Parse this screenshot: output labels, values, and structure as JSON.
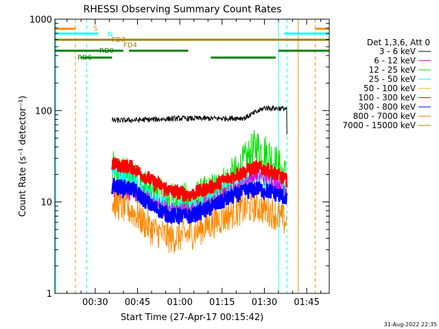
{
  "chart_data": {
    "type": "line",
    "title": "RHESSI Observing Summary Count Rates",
    "xlabel": "Start Time (27-Apr-17 00:15:42)",
    "ylabel": "Count Rate (s⁻¹ detector⁻¹)",
    "y_scale": "log",
    "ylim": [
      1,
      1000
    ],
    "xlim": [
      "00:15:42",
      "01:53:00"
    ],
    "x_ticks": [
      "00:30",
      "00:45",
      "01:00",
      "01:15",
      "01:30",
      "01:45"
    ],
    "y_ticks": [
      "1",
      "10",
      "100",
      "1000"
    ],
    "legend_header": "Det 1,3,6, Att 0",
    "legend_position": "right",
    "timestamp": "31-Aug-2022 22:35",
    "series": [
      {
        "name": "3 - 6 keV",
        "color": "#000000",
        "x": [
          "00:36",
          "00:46",
          "01:00",
          "01:14",
          "01:23",
          "01:30",
          "01:38"
        ],
        "y": [
          78,
          79,
          82,
          82,
          83,
          107,
          105
        ]
      },
      {
        "name": "6 - 12 keV",
        "color": "#e000e0",
        "x": [
          "00:36",
          "00:43",
          "00:50",
          "00:57",
          "01:04",
          "01:12",
          "01:20",
          "01:27",
          "01:32",
          "01:38"
        ],
        "y": [
          14,
          13,
          10,
          8,
          8,
          10,
          14,
          20,
          18,
          14
        ]
      },
      {
        "name": "12 - 25 keV",
        "color": "#00e000",
        "x": [
          "00:36",
          "00:43",
          "00:50",
          "00:57",
          "01:04",
          "01:12",
          "01:20",
          "01:27",
          "01:32",
          "01:38"
        ],
        "y": [
          22,
          18,
          12,
          10,
          10,
          13,
          20,
          40,
          32,
          18
        ]
      },
      {
        "name": "25 - 50 keV",
        "color": "#00ffff",
        "x": [
          "00:36",
          "00:43",
          "00:50",
          "00:57",
          "01:04",
          "01:12",
          "01:20",
          "01:27",
          "01:32",
          "01:38"
        ],
        "y": [
          22,
          17,
          11,
          8,
          8,
          11,
          16,
          20,
          17,
          13
        ]
      },
      {
        "name": "50 - 100 keV",
        "color": "#ffbb00",
        "x": [],
        "y": []
      },
      {
        "name": "100 - 300 keV",
        "color": "#ff0000",
        "x": [
          "00:36",
          "00:43",
          "00:50",
          "00:57",
          "01:04",
          "01:12",
          "01:20",
          "01:27",
          "01:32",
          "01:38"
        ],
        "y": [
          26,
          24,
          17,
          13,
          12,
          15,
          20,
          24,
          22,
          17
        ]
      },
      {
        "name": "300 - 800 keV",
        "color": "#0000ff",
        "x": [
          "00:36",
          "00:43",
          "00:50",
          "00:57",
          "01:04",
          "01:12",
          "01:20",
          "01:27",
          "01:32",
          "01:38"
        ],
        "y": [
          15,
          14,
          9,
          7,
          7,
          9,
          12,
          14,
          13,
          11
        ]
      },
      {
        "name": "800 - 7000 keV",
        "color": "#ff8800",
        "x": [
          "00:36",
          "00:43",
          "00:50",
          "00:57",
          "01:04",
          "01:12",
          "01:20",
          "01:27",
          "01:32",
          "01:38"
        ],
        "y": [
          10,
          8,
          5,
          4,
          4.5,
          6,
          8,
          9,
          8,
          6
        ]
      },
      {
        "name": "7000 - 15000 keV",
        "color": "#a08000",
        "x": [],
        "y": []
      }
    ],
    "flag_bars": [
      {
        "label": "S",
        "color": "#ff8800",
        "segments": [
          [
            "00:15:42",
            "00:23"
          ],
          [
            "01:48",
            "01:53"
          ]
        ]
      },
      {
        "label": "N",
        "color": "#00ffff",
        "segments": [
          [
            "00:15:42",
            "00:31"
          ],
          [
            "01:37",
            "01:53"
          ]
        ]
      },
      {
        "label": "FD3",
        "color": "#a08000",
        "segments": [
          [
            "00:15:42",
            "01:23"
          ],
          [
            "01:23",
            "01:53"
          ]
        ]
      },
      {
        "label": "FD4",
        "color": "#a08000",
        "segments": []
      },
      {
        "label": "RD0",
        "color": "#008000",
        "segments": [
          [
            "00:15:42",
            "00:40"
          ],
          [
            "00:42",
            "01:03"
          ],
          [
            "01:35",
            "01:53"
          ]
        ]
      },
      {
        "label": "RD6",
        "color": "#008000",
        "segments": [
          [
            "00:25",
            "00:36"
          ],
          [
            "01:11",
            "01:34"
          ]
        ]
      }
    ],
    "vertical_markers": [
      {
        "x": "00:16",
        "color": "#00ffff",
        "style": "solid"
      },
      {
        "x": "00:23",
        "color": "#ff8800",
        "style": "dashed"
      },
      {
        "x": "00:27",
        "color": "#00ffff",
        "style": "dashed"
      },
      {
        "x": "01:35",
        "color": "#00ffff",
        "style": "solid"
      },
      {
        "x": "01:38",
        "color": "#00ffff",
        "style": "dashed"
      },
      {
        "x": "01:42",
        "color": "#ff8800",
        "style": "solid"
      },
      {
        "x": "01:48",
        "color": "#ff8800",
        "style": "dashed"
      }
    ]
  }
}
